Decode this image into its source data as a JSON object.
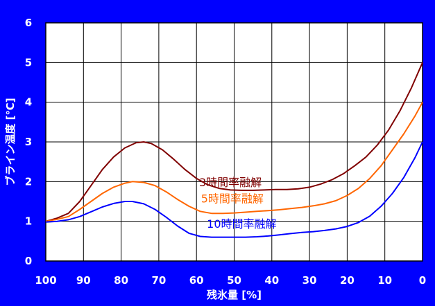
{
  "chart_data": {
    "type": "line",
    "title": "",
    "xlabel": "残氷量 [%]",
    "ylabel": "ブライン温度 [℃]",
    "xlim": [
      100,
      0
    ],
    "ylim": [
      0,
      6
    ],
    "x_ticks": [
      "100",
      "90",
      "80",
      "70",
      "60",
      "50",
      "40",
      "30",
      "20",
      "10",
      "0"
    ],
    "y_ticks": [
      "0",
      "1",
      "2",
      "3",
      "4",
      "5",
      "6"
    ],
    "grid": true,
    "legend": "none",
    "series": [
      {
        "name": "3時間率融解",
        "color": "#800000",
        "points": [
          [
            100,
            1.0
          ],
          [
            97,
            1.08
          ],
          [
            94,
            1.2
          ],
          [
            91,
            1.5
          ],
          [
            88,
            1.9
          ],
          [
            85,
            2.3
          ],
          [
            82,
            2.62
          ],
          [
            79,
            2.85
          ],
          [
            76,
            2.98
          ],
          [
            74,
            3.0
          ],
          [
            72,
            2.96
          ],
          [
            69,
            2.8
          ],
          [
            66,
            2.56
          ],
          [
            63,
            2.3
          ],
          [
            60,
            2.08
          ],
          [
            57,
            1.92
          ],
          [
            54,
            1.83
          ],
          [
            51,
            1.79
          ],
          [
            48,
            1.78
          ],
          [
            45,
            1.78
          ],
          [
            42,
            1.79
          ],
          [
            39,
            1.8
          ],
          [
            36,
            1.8
          ],
          [
            33,
            1.82
          ],
          [
            30,
            1.86
          ],
          [
            27,
            1.94
          ],
          [
            24,
            2.05
          ],
          [
            21,
            2.2
          ],
          [
            18,
            2.4
          ],
          [
            15,
            2.62
          ],
          [
            12,
            2.92
          ],
          [
            9,
            3.3
          ],
          [
            6,
            3.78
          ],
          [
            3,
            4.35
          ],
          [
            0,
            5.0
          ]
        ]
      },
      {
        "name": "5時間率融解",
        "color": "#ff6600",
        "points": [
          [
            100,
            1.0
          ],
          [
            97,
            1.05
          ],
          [
            94,
            1.12
          ],
          [
            91,
            1.3
          ],
          [
            88,
            1.5
          ],
          [
            85,
            1.7
          ],
          [
            82,
            1.86
          ],
          [
            79,
            1.96
          ],
          [
            77,
            2.0
          ],
          [
            74,
            1.98
          ],
          [
            71,
            1.9
          ],
          [
            68,
            1.74
          ],
          [
            65,
            1.55
          ],
          [
            62,
            1.38
          ],
          [
            59,
            1.25
          ],
          [
            56,
            1.2
          ],
          [
            53,
            1.2
          ],
          [
            50,
            1.21
          ],
          [
            47,
            1.23
          ],
          [
            44,
            1.25
          ],
          [
            41,
            1.27
          ],
          [
            38,
            1.29
          ],
          [
            35,
            1.32
          ],
          [
            32,
            1.35
          ],
          [
            29,
            1.39
          ],
          [
            26,
            1.44
          ],
          [
            23,
            1.52
          ],
          [
            20,
            1.65
          ],
          [
            17,
            1.83
          ],
          [
            14,
            2.08
          ],
          [
            11,
            2.4
          ],
          [
            8,
            2.8
          ],
          [
            5,
            3.2
          ],
          [
            2,
            3.65
          ],
          [
            0,
            4.0
          ]
        ]
      },
      {
        "name": "10時間率融解",
        "color": "#0000ff",
        "points": [
          [
            100,
            0.98
          ],
          [
            97,
            1.0
          ],
          [
            94,
            1.04
          ],
          [
            91,
            1.12
          ],
          [
            88,
            1.24
          ],
          [
            85,
            1.36
          ],
          [
            82,
            1.45
          ],
          [
            79,
            1.5
          ],
          [
            77,
            1.5
          ],
          [
            74,
            1.44
          ],
          [
            71,
            1.3
          ],
          [
            68,
            1.1
          ],
          [
            65,
            0.88
          ],
          [
            62,
            0.7
          ],
          [
            59,
            0.62
          ],
          [
            56,
            0.6
          ],
          [
            53,
            0.6
          ],
          [
            50,
            0.6
          ],
          [
            47,
            0.6
          ],
          [
            44,
            0.61
          ],
          [
            41,
            0.63
          ],
          [
            38,
            0.66
          ],
          [
            35,
            0.69
          ],
          [
            32,
            0.72
          ],
          [
            29,
            0.74
          ],
          [
            26,
            0.77
          ],
          [
            23,
            0.81
          ],
          [
            20,
            0.87
          ],
          [
            17,
            0.97
          ],
          [
            14,
            1.13
          ],
          [
            11,
            1.38
          ],
          [
            8,
            1.7
          ],
          [
            5,
            2.1
          ],
          [
            2,
            2.6
          ],
          [
            0,
            3.0
          ]
        ]
      }
    ]
  }
}
